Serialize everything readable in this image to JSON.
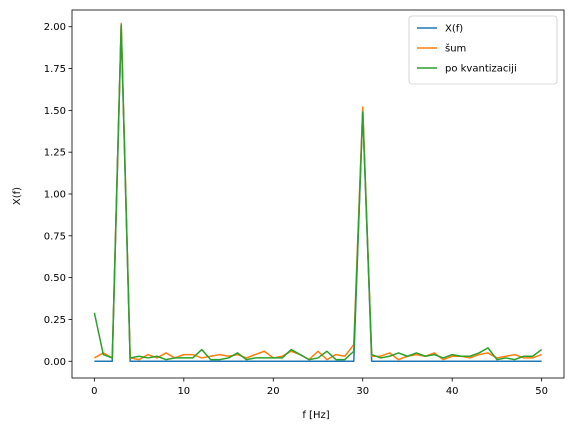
{
  "chart_data": {
    "type": "line",
    "xlabel": "f [Hz]",
    "ylabel": "X(f)",
    "xlim": [
      -2.5,
      52.5
    ],
    "ylim": [
      -0.1,
      2.1
    ],
    "xticks": [
      0,
      10,
      20,
      30,
      40,
      50
    ],
    "xtick_labels": [
      "0",
      "10",
      "20",
      "30",
      "40",
      "50"
    ],
    "yticks": [
      0,
      0.25,
      0.5,
      0.75,
      1.0,
      1.25,
      1.5,
      1.75,
      2.0
    ],
    "ytick_labels": [
      "0.00",
      "0.25",
      "0.50",
      "0.75",
      "1.00",
      "1.25",
      "1.50",
      "1.75",
      "2.00"
    ],
    "grid": false,
    "legend_position": "top-right",
    "x": [
      0,
      1,
      2,
      3,
      4,
      5,
      6,
      7,
      8,
      9,
      10,
      11,
      12,
      13,
      14,
      15,
      16,
      17,
      18,
      19,
      20,
      21,
      22,
      23,
      24,
      25,
      26,
      27,
      28,
      29,
      30,
      31,
      32,
      33,
      34,
      35,
      36,
      37,
      38,
      39,
      40,
      41,
      42,
      43,
      44,
      45,
      46,
      47,
      48,
      49,
      50
    ],
    "series": [
      {
        "name": "X(f)",
        "color": "#1f77b4",
        "values": [
          0,
          0,
          0,
          2.0,
          0,
          0,
          0,
          0,
          0,
          0,
          0,
          0,
          0,
          0,
          0,
          0,
          0,
          0,
          0,
          0,
          0,
          0,
          0,
          0,
          0,
          0,
          0,
          0,
          0,
          0,
          1.5,
          0,
          0,
          0,
          0,
          0,
          0,
          0,
          0,
          0,
          0,
          0,
          0,
          0,
          0,
          0,
          0,
          0,
          0,
          0,
          0
        ]
      },
      {
        "name": "šum",
        "color": "#ff7f0e",
        "values": [
          0.02,
          0.05,
          0.02,
          2.02,
          0.02,
          0.01,
          0.04,
          0.02,
          0.05,
          0.02,
          0.04,
          0.04,
          0.02,
          0.03,
          0.04,
          0.03,
          0.04,
          0.02,
          0.04,
          0.06,
          0.02,
          0.03,
          0.06,
          0.04,
          0.01,
          0.06,
          0.01,
          0.04,
          0.03,
          0.1,
          1.52,
          0.03,
          0.03,
          0.05,
          0.01,
          0.03,
          0.04,
          0.03,
          0.05,
          0.01,
          0.03,
          0.03,
          0.02,
          0.04,
          0.05,
          0.02,
          0.03,
          0.04,
          0.02,
          0.02,
          0.04
        ]
      },
      {
        "name": "po kvantizaciji",
        "color": "#2ca02c",
        "values": [
          0.29,
          0.04,
          0.02,
          2.01,
          0.02,
          0.03,
          0.02,
          0.03,
          0.01,
          0.02,
          0.02,
          0.02,
          0.07,
          0.01,
          0.01,
          0.02,
          0.05,
          0.01,
          0.02,
          0.02,
          0.02,
          0.02,
          0.07,
          0.04,
          0.01,
          0.02,
          0.06,
          0.01,
          0.01,
          0.06,
          1.49,
          0.04,
          0.02,
          0.03,
          0.05,
          0.03,
          0.05,
          0.03,
          0.04,
          0.02,
          0.04,
          0.03,
          0.03,
          0.05,
          0.08,
          0.01,
          0.02,
          0.01,
          0.03,
          0.03,
          0.07
        ]
      }
    ]
  }
}
